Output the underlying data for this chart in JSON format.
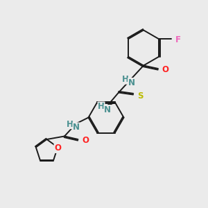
{
  "bg_color": "#ebebeb",
  "bond_color": "#1a1a1a",
  "atom_colors": {
    "N": "#4a9090",
    "O": "#ff2222",
    "S": "#bbbb00",
    "F": "#ee66bb",
    "C": "#1a1a1a",
    "H": "#4a9090"
  },
  "lw": 1.4,
  "fs": 8.5,
  "figsize": [
    3.0,
    3.0
  ],
  "dpi": 100
}
